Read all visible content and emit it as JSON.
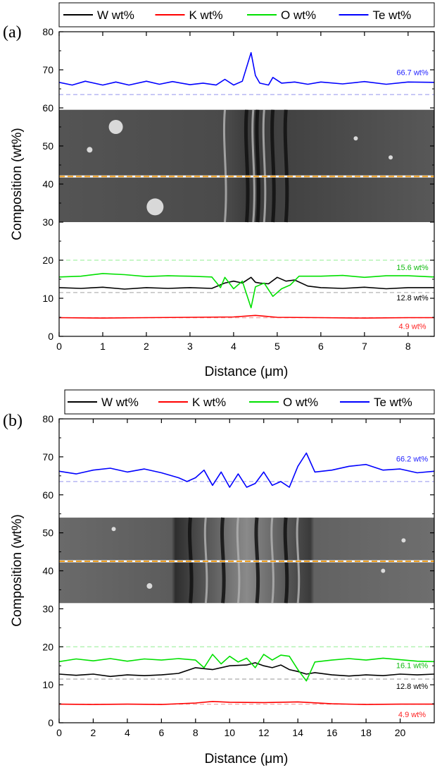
{
  "chart_data": [
    {
      "panel_label": "(a)",
      "type": "line",
      "xlabel": "Distance (μm)",
      "ylabel": "Composition (wt%)",
      "xlim": [
        0,
        8.6
      ],
      "ylim": [
        0,
        80
      ],
      "xticks": [
        0,
        1,
        2,
        3,
        4,
        5,
        6,
        7,
        8
      ],
      "yticks": [
        0,
        10,
        20,
        30,
        40,
        50,
        60,
        70,
        80
      ],
      "legend_position": "top",
      "sem_image_y_range": [
        30,
        59.5
      ],
      "scan_line_y": 42,
      "series": [
        {
          "name": "W wt%",
          "color": "#000000",
          "x": [
            0,
            0.5,
            1,
            1.5,
            2,
            2.5,
            3,
            3.5,
            3.8,
            4.0,
            4.2,
            4.4,
            4.5,
            4.6,
            4.8,
            5.0,
            5.2,
            5.4,
            5.7,
            6,
            6.5,
            7,
            7.5,
            8,
            8.6
          ],
          "y": [
            12.8,
            12.6,
            12.9,
            12.4,
            12.8,
            12.6,
            12.8,
            12.6,
            14.0,
            14.5,
            14.0,
            15.5,
            14.2,
            14.0,
            13.8,
            15.5,
            14.5,
            14.8,
            13.2,
            12.8,
            12.6,
            12.9,
            12.5,
            12.8,
            12.8
          ]
        },
        {
          "name": "K wt%",
          "color": "#ff0000",
          "x": [
            0,
            1,
            2,
            3,
            4,
            4.5,
            5,
            6,
            7,
            8,
            8.6
          ],
          "y": [
            4.9,
            4.8,
            4.9,
            5.0,
            5.1,
            5.5,
            5.0,
            4.9,
            4.8,
            4.9,
            4.9
          ]
        },
        {
          "name": "O wt%",
          "color": "#00e000",
          "x": [
            0,
            0.5,
            1,
            1.5,
            2,
            2.5,
            3,
            3.5,
            3.7,
            3.8,
            4.0,
            4.2,
            4.4,
            4.5,
            4.7,
            4.9,
            5.1,
            5.3,
            5.5,
            6,
            6.5,
            7,
            7.5,
            8,
            8.6
          ],
          "y": [
            15.6,
            15.8,
            16.5,
            16.2,
            15.7,
            15.9,
            15.8,
            15.6,
            12.8,
            15.5,
            12.5,
            14.5,
            7.5,
            13.0,
            14.0,
            10.5,
            12.5,
            13.5,
            15.8,
            15.8,
            16.0,
            15.5,
            15.9,
            15.9,
            15.6
          ]
        },
        {
          "name": "Te wt%",
          "color": "#0000ff",
          "x": [
            0,
            0.3,
            0.6,
            1,
            1.3,
            1.6,
            2,
            2.3,
            2.6,
            3,
            3.3,
            3.6,
            3.8,
            4.0,
            4.2,
            4.4,
            4.5,
            4.6,
            4.8,
            4.9,
            5.1,
            5.4,
            5.7,
            6,
            6.5,
            7,
            7.5,
            8,
            8.6
          ],
          "y": [
            66.7,
            66.0,
            67.0,
            66.0,
            66.8,
            66.0,
            67.0,
            66.2,
            66.9,
            66.1,
            66.5,
            66.0,
            67.5,
            66.0,
            67.0,
            74.5,
            68.5,
            66.5,
            66.0,
            68.0,
            66.5,
            66.8,
            66.2,
            66.8,
            66.3,
            66.9,
            66.2,
            66.8,
            66.7
          ]
        }
      ],
      "reference_lines": [
        {
          "y": 63.5,
          "color": "#a8a8f0"
        },
        {
          "y": 20,
          "color": "#a8f0a8"
        },
        {
          "y": 11.5,
          "color": "#b4b4b4"
        },
        {
          "y": 4.9,
          "color": "#f0a8a8"
        }
      ],
      "annotations": [
        {
          "text": "66.7 wt%",
          "x": 8.1,
          "y": 68.6,
          "color": "#2222ff"
        },
        {
          "text": "15.6 wt%",
          "x": 8.1,
          "y": 17.4,
          "color": "#11bb11"
        },
        {
          "text": "12.8 wt%",
          "x": 8.1,
          "y": 9.4,
          "color": "#000000"
        },
        {
          "text": "4.9 wt%",
          "x": 8.1,
          "y": 1.9,
          "color": "#ff2222"
        }
      ]
    },
    {
      "panel_label": "(b)",
      "type": "line",
      "xlabel": "Distance (μm)",
      "ylabel": "Composition (wt%)",
      "xlim": [
        0,
        22
      ],
      "ylim": [
        0,
        80
      ],
      "xticks": [
        0,
        2,
        4,
        6,
        8,
        10,
        12,
        14,
        16,
        18,
        20
      ],
      "yticks": [
        0,
        10,
        20,
        30,
        40,
        50,
        60,
        70,
        80
      ],
      "legend_position": "top",
      "sem_image_y_range": [
        31.5,
        54
      ],
      "scan_line_y": 42.5,
      "series": [
        {
          "name": "W wt%",
          "color": "#000000",
          "x": [
            0,
            1,
            2,
            3,
            4,
            5,
            6,
            7,
            8,
            9,
            10,
            11,
            11.5,
            12,
            12.5,
            13,
            13.5,
            14,
            14.5,
            15,
            16,
            17,
            18,
            19,
            20,
            21,
            22
          ],
          "y": [
            12.8,
            12.5,
            12.8,
            12.2,
            12.6,
            12.4,
            12.6,
            13.0,
            14.5,
            14.0,
            15.0,
            15.2,
            15.8,
            15.0,
            14.5,
            15.2,
            14.0,
            13.5,
            12.8,
            13.2,
            12.6,
            12.3,
            12.6,
            12.4,
            12.8,
            12.6,
            12.8
          ]
        },
        {
          "name": "K wt%",
          "color": "#ff0000",
          "x": [
            0,
            2,
            4,
            6,
            8,
            9,
            10,
            12,
            14,
            16,
            18,
            20,
            22
          ],
          "y": [
            4.9,
            4.8,
            4.9,
            4.8,
            5.2,
            5.6,
            5.4,
            5.3,
            5.5,
            5.0,
            4.8,
            4.9,
            4.9
          ]
        },
        {
          "name": "O wt%",
          "color": "#00e000",
          "x": [
            0,
            1,
            2,
            3,
            4,
            5,
            6,
            7,
            8,
            8.5,
            9,
            9.5,
            10,
            10.5,
            11,
            11.5,
            12,
            12.5,
            13,
            13.5,
            14,
            14.5,
            15,
            16,
            17,
            18,
            19,
            20,
            21,
            22
          ],
          "y": [
            16.1,
            16.8,
            16.3,
            16.9,
            16.2,
            16.8,
            16.5,
            16.9,
            16.5,
            14.5,
            18.0,
            15.5,
            17.5,
            16.0,
            17.0,
            14.5,
            18.0,
            16.5,
            17.8,
            17.5,
            14.0,
            11.0,
            16.0,
            16.5,
            16.9,
            16.5,
            17.0,
            16.6,
            16.2,
            16.1
          ]
        },
        {
          "name": "Te wt%",
          "color": "#0000ff",
          "x": [
            0,
            1,
            2,
            3,
            4,
            5,
            6,
            7,
            7.5,
            8,
            8.5,
            9,
            9.5,
            10,
            10.5,
            11,
            11.5,
            12,
            12.5,
            13,
            13.5,
            14,
            14.5,
            15,
            16,
            17,
            18,
            19,
            20,
            21,
            22
          ],
          "y": [
            66.2,
            65.5,
            66.5,
            67.0,
            66.0,
            66.8,
            65.8,
            64.5,
            63.5,
            64.5,
            66.5,
            62.5,
            66.0,
            62.0,
            65.5,
            62.0,
            63.0,
            66.0,
            62.5,
            63.5,
            62.0,
            67.5,
            71.0,
            66.0,
            66.5,
            67.5,
            68.0,
            66.5,
            66.8,
            65.8,
            66.2
          ]
        }
      ],
      "reference_lines": [
        {
          "y": 63.5,
          "color": "#a8a8f0"
        },
        {
          "y": 20,
          "color": "#a8f0a8"
        },
        {
          "y": 11.5,
          "color": "#b4b4b4"
        },
        {
          "y": 4.9,
          "color": "#f0a8a8"
        }
      ],
      "annotations": [
        {
          "text": "66.2 wt%",
          "x": 20.7,
          "y": 68.8,
          "color": "#2222ff"
        },
        {
          "text": "16.1 wt%",
          "x": 20.7,
          "y": 14.4,
          "color": "#11bb11"
        },
        {
          "text": "12.8 wt%",
          "x": 20.7,
          "y": 8.9,
          "color": "#000000"
        },
        {
          "text": "4.9 wt%",
          "x": 20.7,
          "y": 1.5,
          "color": "#ff2222"
        }
      ]
    }
  ]
}
